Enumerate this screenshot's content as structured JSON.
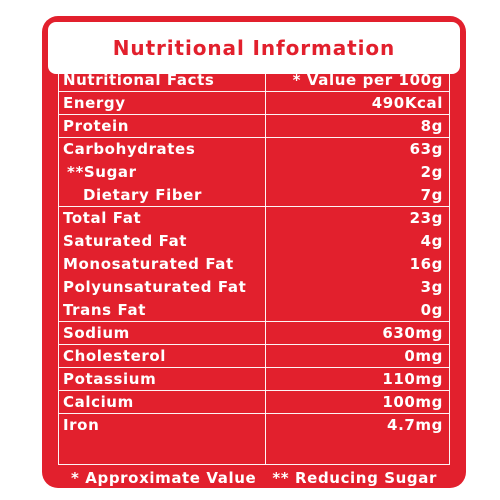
{
  "title": "Nutritional Information",
  "header": {
    "label": "Nutritional Facts",
    "value": "* Value per 100g"
  },
  "rows": [
    {
      "label": "Energy",
      "value": "490Kcal"
    },
    {
      "label": "Protein",
      "value": "8g"
    },
    {
      "label": "Carbohydrates",
      "value": "63g"
    },
    {
      "label": "**Sugar",
      "value": "2g"
    },
    {
      "label": "Dietary Fiber",
      "value": "7g"
    },
    {
      "label": "Total Fat",
      "value": "23g"
    },
    {
      "label": "Saturated Fat",
      "value": "4g"
    },
    {
      "label": "Monosaturated Fat",
      "value": "16g"
    },
    {
      "label": "Polyunsaturated Fat",
      "value": "3g"
    },
    {
      "label": "Trans Fat",
      "value": "0g"
    },
    {
      "label": "Sodium",
      "value": "630mg"
    },
    {
      "label": "Cholesterol",
      "value": "0mg"
    },
    {
      "label": "Potassium",
      "value": "110mg"
    },
    {
      "label": "Calcium",
      "value": "100mg"
    },
    {
      "label": "Iron",
      "value": "4.7mg"
    }
  ],
  "footer": {
    "note_1": "* Approximate Value",
    "note_2": "** Reducing Sugar"
  },
  "colors": {
    "background": "#e2202d",
    "text": "#ffffff",
    "title_card": "#ffffff"
  }
}
